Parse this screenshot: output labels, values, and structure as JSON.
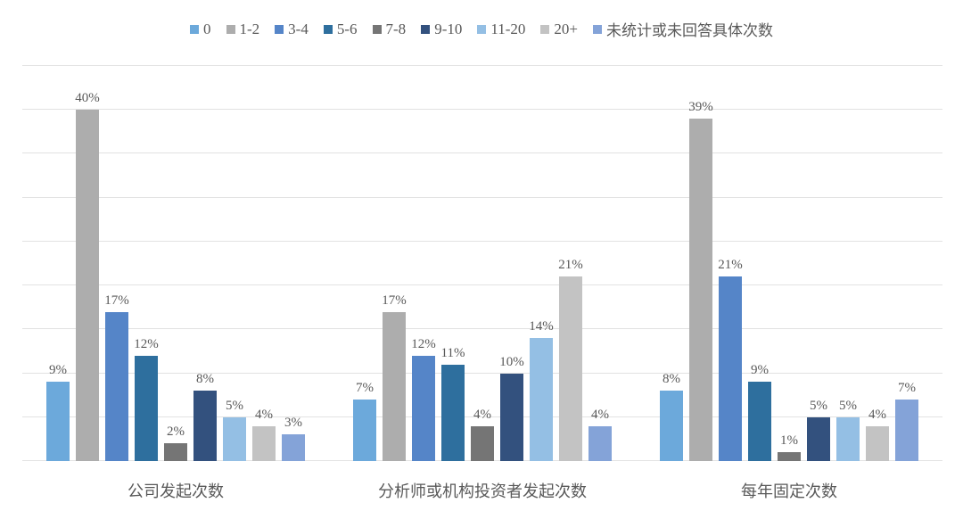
{
  "chart_data": {
    "type": "bar",
    "title": "",
    "xlabel": "",
    "ylabel": "",
    "categories": [
      "公司发起次数",
      "分析师或机构投资者发起次数",
      "每年固定次数"
    ],
    "series": [
      {
        "name": "0",
        "color": "#6CA9DB",
        "values": [
          9,
          7,
          8
        ]
      },
      {
        "name": "1-2",
        "color": "#ADADAD",
        "values": [
          40,
          17,
          39
        ]
      },
      {
        "name": "3-4",
        "color": "#5585C8",
        "values": [
          17,
          12,
          21
        ]
      },
      {
        "name": "5-6",
        "color": "#2E6F9E",
        "values": [
          12,
          11,
          9
        ]
      },
      {
        "name": "7-8",
        "color": "#757575",
        "values": [
          2,
          4,
          1
        ]
      },
      {
        "name": "9-10",
        "color": "#33517E",
        "values": [
          8,
          10,
          5
        ]
      },
      {
        "name": "11-20",
        "color": "#94BFE4",
        "values": [
          5,
          14,
          5
        ]
      },
      {
        "name": "20+",
        "color": "#C3C3C3",
        "values": [
          4,
          21,
          4
        ]
      },
      {
        "name": "未统计或未回答具体次数",
        "color": "#84A3D8",
        "values": [
          3,
          4,
          7
        ]
      }
    ],
    "value_label_suffix": "%",
    "ylim": [
      0,
      45
    ],
    "grid_step": 5,
    "grid": true,
    "y_tick_labels_shown": false,
    "legend_position": "top"
  },
  "style": {
    "background": "#FFFFFF",
    "text_color": "#595959",
    "gridline_color": "#E2E2E2"
  }
}
